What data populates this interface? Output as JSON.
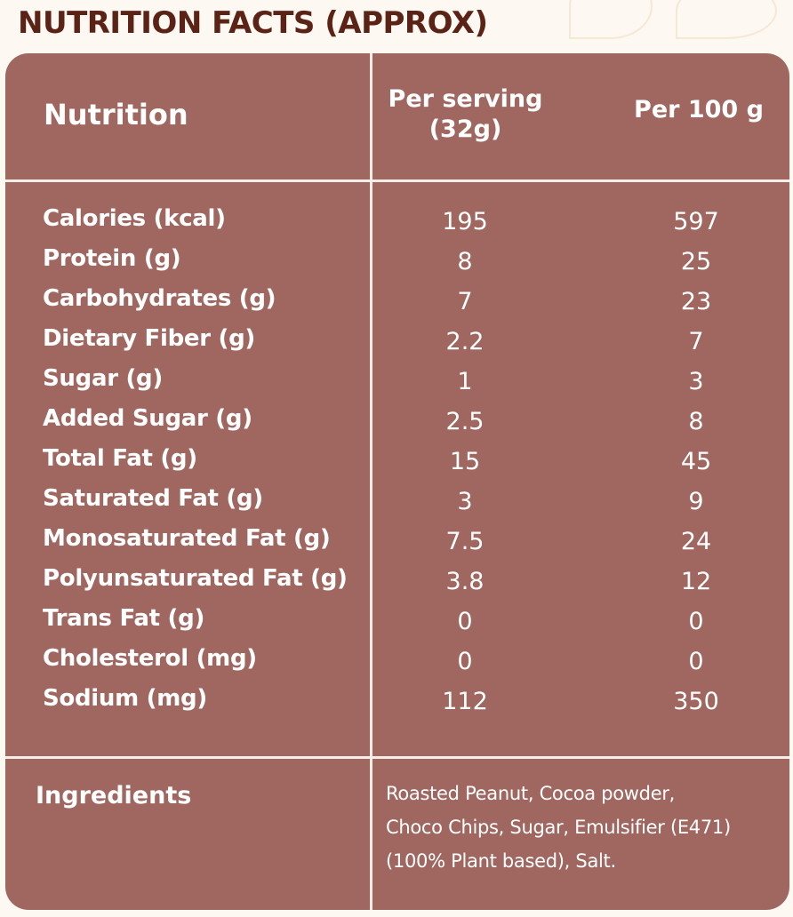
{
  "title": "NUTRITION FACTS (APPROX)",
  "table": {
    "header": {
      "nutrition_label": "Nutrition",
      "per_serving_line1": "Per serving",
      "per_serving_line2": "(32g)",
      "per_100g": "Per 100 g"
    },
    "rows": [
      {
        "name": "Calories (kcal)",
        "serving": "195",
        "per100": "597"
      },
      {
        "name": "Protein (g)",
        "serving": "8",
        "per100": "25"
      },
      {
        "name": "Carbohydrates (g)",
        "serving": "7",
        "per100": "23"
      },
      {
        "name": "Dietary Fiber (g)",
        "serving": "2.2",
        "per100": "7"
      },
      {
        "name": "Sugar (g)",
        "serving": "1",
        "per100": "3"
      },
      {
        "name": "Added Sugar (g)",
        "serving": "2.5",
        "per100": "8"
      },
      {
        "name": "Total Fat (g)",
        "serving": "15",
        "per100": "45"
      },
      {
        "name": "Saturated Fat (g)",
        "serving": "3",
        "per100": "9"
      },
      {
        "name": "Monosaturated Fat (g)",
        "serving": "7.5",
        "per100": "24"
      },
      {
        "name": "Polyunsaturated Fat (g)",
        "serving": "3.8",
        "per100": "12"
      },
      {
        "name": "Trans Fat (g)",
        "serving": "0",
        "per100": "0"
      },
      {
        "name": "Cholesterol (mg)",
        "serving": "0",
        "per100": "0"
      },
      {
        "name": "Sodium (mg)",
        "serving": "112",
        "per100": "350"
      }
    ],
    "ingredients": {
      "label": "Ingredients",
      "line1": "Roasted Peanut, Cocoa powder,",
      "line2": "Choco Chips, Sugar, Emulsifier (E471)",
      "line3": "(100% Plant based), Salt."
    }
  },
  "colors": {
    "panel": "#9f6760",
    "title": "#5b2316",
    "background": "#fdf8f1",
    "divider": "#f7eee8"
  }
}
